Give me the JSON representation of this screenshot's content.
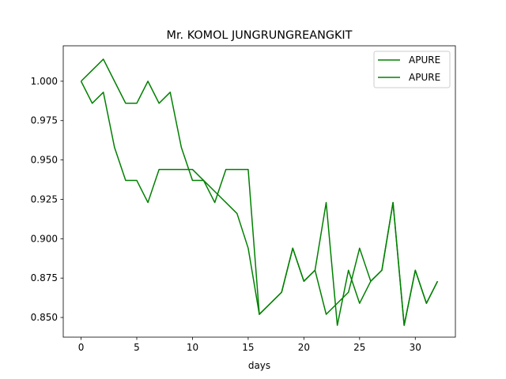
{
  "chart_data": {
    "type": "line",
    "title": "Mr. KOMOL JUNGRUNGREANGKIT",
    "xlabel": "days",
    "ylabel": "",
    "xlim": [
      -1.6,
      33.6
    ],
    "ylim": [
      0.8375,
      1.0225
    ],
    "xticks": [
      0,
      5,
      10,
      15,
      20,
      25,
      30
    ],
    "yticks": [
      0.85,
      0.875,
      0.9,
      0.925,
      0.95,
      0.975,
      1.0
    ],
    "ytick_labels": [
      "0.850",
      "0.875",
      "0.900",
      "0.925",
      "0.950",
      "0.975",
      "1.000"
    ],
    "grid": false,
    "legend_position": "top-right",
    "series": [
      {
        "name": "APURE",
        "color": "#008000",
        "x": [
          0,
          1,
          2,
          3,
          4,
          5,
          6,
          7,
          8,
          9,
          10,
          11,
          12,
          13,
          14,
          15,
          16,
          17,
          18,
          19,
          20,
          21,
          22,
          23,
          24,
          25,
          26,
          27,
          28,
          29,
          30,
          31,
          32
        ],
        "y": [
          1.0,
          0.986,
          0.993,
          0.958,
          0.937,
          0.937,
          0.923,
          0.944,
          0.944,
          0.944,
          0.944,
          0.937,
          0.923,
          0.944,
          0.944,
          0.944,
          0.852,
          0.859,
          0.866,
          0.894,
          0.873,
          0.88,
          0.923,
          0.845,
          0.88,
          0.859,
          0.873,
          0.88,
          0.923,
          0.845,
          0.88,
          0.859,
          0.873
        ]
      },
      {
        "name": "APURE",
        "color": "#008000",
        "x": [
          0,
          1,
          2,
          3,
          4,
          5,
          6,
          7,
          8,
          9,
          10,
          11,
          12,
          13,
          14,
          15,
          16,
          17,
          18,
          19,
          20,
          21,
          22,
          23,
          24,
          25,
          26,
          27,
          28,
          29,
          30,
          31,
          32
        ],
        "y": [
          1.0,
          1.007,
          1.014,
          1.0,
          0.986,
          0.986,
          1.0,
          0.986,
          0.993,
          0.958,
          0.937,
          0.937,
          0.93,
          0.923,
          0.916,
          0.894,
          0.852,
          0.859,
          0.866,
          0.894,
          0.873,
          0.88,
          0.852,
          0.859,
          0.866,
          0.894,
          0.873,
          0.88,
          0.923,
          0.845,
          0.88,
          0.859,
          0.873
        ]
      }
    ]
  }
}
